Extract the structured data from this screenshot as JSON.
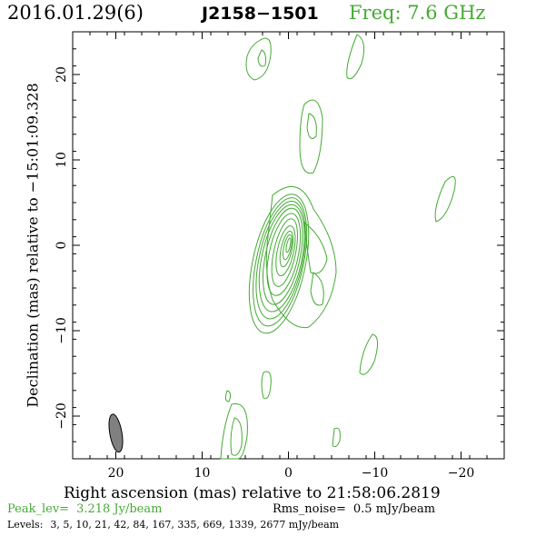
{
  "header": {
    "date": "2016.01.29(6)",
    "source": "J2158−1501",
    "freq": "Freq: 7.6 GHz"
  },
  "axes": {
    "xlabel": "Right ascension (mas) relative to 21:58:06.2819",
    "ylabel": "Declination (mas) relative to −15:01:09.328",
    "xticks": [
      "20",
      "10",
      "0",
      "−10",
      "−20"
    ],
    "yticks": [
      "20",
      "10",
      "0",
      "−10",
      "−20"
    ]
  },
  "footer": {
    "peak_label": "Peak_lev=",
    "peak_value": "3.218 Jy/beam",
    "rms_label": "Rms_noise=",
    "rms_value": "0.5 mJy/beam",
    "levels_label": "Levels:",
    "levels_value": "3,   5,  10,  21,  42,  84, 167, 335, 669, 1339, 2677 mJy/beam"
  },
  "colors": {
    "contour": "#44aa33",
    "beam": "#808080",
    "freq": "#44aa33"
  },
  "chart_data": {
    "type": "contour",
    "xlim": [
      25,
      -25
    ],
    "ylim": [
      -25,
      25
    ],
    "grid": false,
    "levels_mJy": [
      3,
      5,
      10,
      21,
      42,
      84,
      167,
      335,
      669,
      1339,
      2677
    ],
    "peak_Jy_per_beam": 3.218,
    "rms_mJy_per_beam": 0.5,
    "beam": {
      "x": 20,
      "y": -22,
      "major_mas": 4.5,
      "minor_mas": 1.4,
      "pa_deg": -10
    },
    "core": {
      "x": 0,
      "y": 0
    }
  }
}
